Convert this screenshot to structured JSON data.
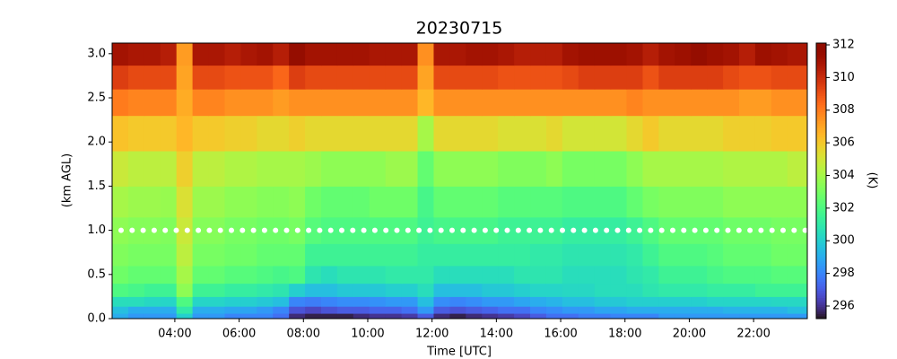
{
  "chart_data": {
    "type": "heatmap",
    "title": "20230715",
    "xlabel": "Time [UTC]",
    "ylabel": "(km AGL)",
    "colorbar_label": "(K)",
    "colormap": "turbo",
    "xlim": [
      2.05,
      23.67
    ],
    "ylim": [
      0,
      3.12
    ],
    "clim": [
      295.23,
      312.11
    ],
    "xticks": [
      {
        "value": 4,
        "label": "04:00"
      },
      {
        "value": 6,
        "label": "06:00"
      },
      {
        "value": 8,
        "label": "08:00"
      },
      {
        "value": 10,
        "label": "10:00"
      },
      {
        "value": 12,
        "label": "12:00"
      },
      {
        "value": 14,
        "label": "14:00"
      },
      {
        "value": 16,
        "label": "16:00"
      },
      {
        "value": 18,
        "label": "18:00"
      },
      {
        "value": 20,
        "label": "20:00"
      },
      {
        "value": 22,
        "label": "22:00"
      }
    ],
    "yticks": [
      {
        "value": 0,
        "label": "0.0"
      },
      0.5,
      {
        "value": 1,
        "label": "1.0"
      },
      1.5,
      {
        "value": 2,
        "label": "2.0"
      },
      2.5,
      {
        "value": 3,
        "label": "3.0"
      }
    ],
    "colorbar_ticks": [
      296,
      298,
      300,
      302,
      304,
      306,
      308,
      310,
      312
    ],
    "reference_line": {
      "y": 1,
      "color": "#ffffff",
      "style": "dotted"
    },
    "x_edges": [
      2.05,
      2.55,
      3.05,
      3.55,
      4.05,
      4.55,
      5.05,
      5.55,
      6.05,
      6.55,
      7.05,
      7.55,
      8.05,
      8.55,
      9.05,
      9.55,
      10.05,
      10.55,
      11.05,
      11.55,
      12.05,
      12.55,
      13.05,
      13.55,
      14.05,
      14.55,
      15.05,
      15.55,
      16.05,
      16.55,
      17.05,
      17.55,
      18.05,
      18.55,
      19.05,
      19.55,
      20.05,
      20.55,
      21.05,
      21.55,
      22.05,
      22.55,
      23.05,
      23.67
    ],
    "y_edges": [
      0,
      0.06,
      0.14,
      0.25,
      0.4,
      0.6,
      0.85,
      1.15,
      1.5,
      1.9,
      2.3,
      2.6,
      2.87,
      3.12
    ],
    "z": [
      [
        299,
        298.5,
        298.5,
        298.5,
        300,
        298.5,
        298.5,
        298,
        298,
        298,
        297.5,
        295.8,
        295.5,
        295.5,
        295.5,
        295.8,
        296,
        296,
        296.2,
        297,
        295.8,
        295.5,
        295.8,
        296,
        296.2,
        296.5,
        297,
        297.5,
        297.5,
        297.8,
        297.8,
        298,
        298,
        298,
        298.5,
        298.5,
        298.5,
        298.5,
        298.5,
        298.5,
        298.5,
        298.5,
        298.5
      ],
      [
        299.5,
        299,
        299,
        299,
        301,
        299,
        299,
        298.8,
        298.8,
        298.5,
        298,
        296.8,
        296.5,
        296.8,
        297,
        297,
        297.2,
        297.2,
        297.5,
        298.5,
        297,
        296.8,
        297,
        297.2,
        297.5,
        297.5,
        298,
        298.2,
        298.5,
        298.5,
        298.8,
        298.8,
        299,
        299,
        299,
        299,
        299,
        299,
        299.2,
        299.2,
        299.2,
        299.2,
        299.5
      ],
      [
        300.5,
        300.5,
        300.3,
        300.2,
        302,
        300.2,
        300.2,
        300,
        300,
        299.8,
        299.5,
        298,
        297.8,
        298,
        298.2,
        298.2,
        298.3,
        298.5,
        298.5,
        299.5,
        298.2,
        298,
        298.2,
        298.5,
        298.5,
        298.8,
        299,
        299.2,
        299.5,
        299.5,
        299.8,
        299.8,
        300,
        300,
        300,
        300,
        300,
        300.2,
        300.2,
        300.2,
        300.2,
        300.3,
        300.3
      ],
      [
        302,
        301.8,
        301.5,
        301.5,
        303.5,
        301.5,
        301.5,
        301.2,
        301.2,
        301,
        300.8,
        300,
        299.5,
        299.5,
        299.8,
        299.8,
        299.8,
        300,
        300,
        300.5,
        299.5,
        299.5,
        299.5,
        299.8,
        299.8,
        300,
        300.2,
        300.2,
        300.3,
        300.3,
        300.5,
        300.5,
        300.5,
        300.8,
        301,
        301,
        301,
        301.2,
        301.2,
        301.2,
        301.5,
        301.5,
        301.5
      ],
      [
        302.8,
        302.5,
        302.5,
        302.5,
        304,
        302.5,
        302.5,
        302.2,
        302.2,
        302,
        301.8,
        302,
        300.8,
        300.5,
        300.8,
        300.8,
        300.8,
        301,
        301,
        301,
        300.5,
        300.5,
        300.5,
        300.5,
        300.5,
        300.8,
        300.8,
        300.8,
        300.5,
        300.5,
        300.5,
        300.5,
        300.8,
        301,
        301.5,
        301.5,
        301.5,
        301.8,
        302,
        302,
        302,
        302.2,
        302.2
      ],
      [
        303.2,
        303,
        303,
        303,
        304.5,
        303,
        303,
        302.8,
        302.8,
        302.5,
        302.5,
        302.5,
        301.5,
        301.5,
        301.5,
        301.5,
        301.5,
        301.5,
        301.5,
        301.2,
        301.2,
        301.2,
        301.2,
        301.2,
        301.2,
        301.2,
        301,
        301,
        300.8,
        300.8,
        300.8,
        300.8,
        301,
        301.5,
        302,
        302,
        302,
        302.2,
        302.5,
        302.5,
        302.5,
        302.8,
        302.8
      ],
      [
        303.5,
        303.3,
        303.3,
        303.2,
        304.8,
        303.3,
        303.3,
        303,
        303,
        302.8,
        302.8,
        303,
        302.2,
        302,
        302,
        302,
        302,
        302,
        302,
        301.5,
        301.8,
        301.8,
        301.8,
        301.8,
        301.5,
        301.5,
        301.5,
        301.5,
        301.2,
        301.2,
        301.2,
        301.2,
        301.5,
        302,
        302.5,
        302.5,
        302.5,
        302.5,
        302.8,
        302.8,
        302.8,
        303,
        303
      ],
      [
        304,
        303.8,
        303.8,
        303.7,
        305.2,
        303.8,
        303.8,
        303.5,
        303.5,
        303.3,
        303.3,
        303.5,
        302.8,
        302.5,
        302.5,
        302.5,
        302.8,
        302.8,
        302.8,
        301.8,
        302.5,
        302.5,
        302.5,
        302.5,
        302.2,
        302.2,
        302.2,
        302.2,
        302,
        302,
        302,
        302,
        302.5,
        303,
        303.2,
        303.2,
        303.2,
        303.2,
        303.5,
        303.5,
        303.5,
        303.5,
        303.5
      ],
      [
        304.8,
        304.5,
        304.5,
        304.5,
        305.8,
        304.5,
        304.5,
        304.2,
        304.2,
        304,
        304,
        304,
        303.8,
        303.5,
        303.5,
        303.5,
        303.5,
        303.8,
        303.8,
        302.5,
        303.5,
        303.5,
        303.5,
        303.5,
        303.2,
        303.2,
        303.2,
        303.5,
        303,
        303,
        303,
        303,
        303.5,
        304,
        304,
        304,
        304,
        304,
        304.2,
        304.2,
        304.2,
        304.2,
        304.5
      ],
      [
        306.2,
        306,
        306,
        306,
        306.5,
        306,
        306,
        305.8,
        305.8,
        305.5,
        305.5,
        305.8,
        305.5,
        305.5,
        305.5,
        305.5,
        305.5,
        305.5,
        305.5,
        304,
        305.5,
        305.5,
        305.5,
        305.5,
        305.2,
        305.2,
        305.2,
        305.5,
        305,
        305,
        305,
        305,
        305.5,
        306,
        305.5,
        305.5,
        305.5,
        305.5,
        305.8,
        305.8,
        305.8,
        306,
        306
      ],
      [
        308,
        307.8,
        307.8,
        307.8,
        306.8,
        307.8,
        307.8,
        307.5,
        307.5,
        307.5,
        307.2,
        307.5,
        307.5,
        307.5,
        307.5,
        307.5,
        307.5,
        307.5,
        307.5,
        306.5,
        307.5,
        307.5,
        307.5,
        307.5,
        307.5,
        307.5,
        307.5,
        307.5,
        307.5,
        307.5,
        307.5,
        307.5,
        307.8,
        307.5,
        307.5,
        307.5,
        307.5,
        307.5,
        307.5,
        307.2,
        307.2,
        307.5,
        307.5
      ],
      [
        309.5,
        309.2,
        309.2,
        309.2,
        307,
        309.2,
        309.2,
        309,
        309,
        309,
        308.5,
        309.5,
        309.2,
        309.2,
        309.2,
        309.2,
        309.2,
        309.2,
        309.2,
        307,
        309.2,
        309.2,
        309.2,
        309.2,
        309,
        309,
        309,
        309,
        309.2,
        309.5,
        309.5,
        309.5,
        309.5,
        309,
        309.5,
        309.5,
        309.5,
        309.5,
        309.2,
        309,
        309,
        309.2,
        309.2
      ],
      [
        311,
        310.8,
        310.8,
        310.5,
        307.2,
        310.8,
        310.8,
        310.5,
        310.8,
        311,
        310.5,
        311.5,
        311,
        311,
        311,
        311,
        310.8,
        310.8,
        310.8,
        307.5,
        310.8,
        310.8,
        311,
        311,
        310.8,
        310.5,
        310.5,
        310.5,
        311,
        311.2,
        311.2,
        311.2,
        311,
        310.5,
        311,
        311.2,
        311.5,
        311.2,
        311,
        310.5,
        311.2,
        311,
        310.8
      ]
    ]
  }
}
